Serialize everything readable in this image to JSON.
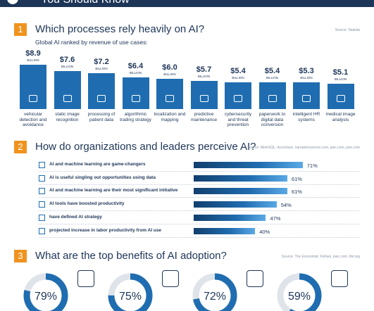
{
  "header": {
    "title": "You Should Know"
  },
  "chart_data": [
    {
      "type": "bar",
      "section_number": "1",
      "title": "Which processes rely heavily on AI?",
      "source": "Source: Statista",
      "subtitle": "Global AI ranked by revenue of use cases:",
      "unit_label": "BILLION",
      "categories": [
        "vehicular detection and avoidance",
        "static image recognition",
        "processing of patient data",
        "algorithmic trading strategy",
        "localization and mapping",
        "predictive maintenance",
        "cybersecurity and threat prevention",
        "paperwork to digital data conversion",
        "intelligent HR systems",
        "medical image analysis"
      ],
      "values": [
        8.9,
        7.6,
        7.2,
        6.4,
        6.0,
        5.7,
        5.4,
        5.4,
        5.3,
        5.1
      ],
      "value_labels": [
        "$8.9",
        "$7.6",
        "$7.2",
        "$6.4",
        "$6.0",
        "$5.7",
        "$5.4",
        "$5.4",
        "$5.3",
        "$5.1"
      ],
      "color": "#1f6db0",
      "ylim": [
        0,
        10
      ]
    },
    {
      "type": "hbar",
      "section_number": "2",
      "title": "How do organizations and leaders perceive AI?",
      "source": "Source: MemSQL, Accenture, narrativescience.com, pwc.com, pwc.com",
      "categories": [
        "AI and machine learning are game-changers",
        "AI is useful singling out opportunities using data",
        "AI and machine learning are their most significant initiative",
        "AI tools have boosted productivity",
        "have defined AI strategy",
        "projected increase in labor productivity from AI use"
      ],
      "values": [
        71,
        61,
        61,
        54,
        47,
        40
      ],
      "value_labels": [
        "71%",
        "61%",
        "61%",
        "54%",
        "47%",
        "40%"
      ],
      "color": "#1f6db0",
      "xlim": [
        0,
        100
      ]
    },
    {
      "type": "donut",
      "section_number": "3",
      "title": "What are the top benefits of AI adoption?",
      "source": "Source: The Economist, Forbes, pwc.com, hbr.org",
      "values": [
        79,
        75,
        72,
        59
      ],
      "value_labels": [
        "79%",
        "75%",
        "72%",
        "59%"
      ],
      "color": "#1f6db0"
    }
  ]
}
